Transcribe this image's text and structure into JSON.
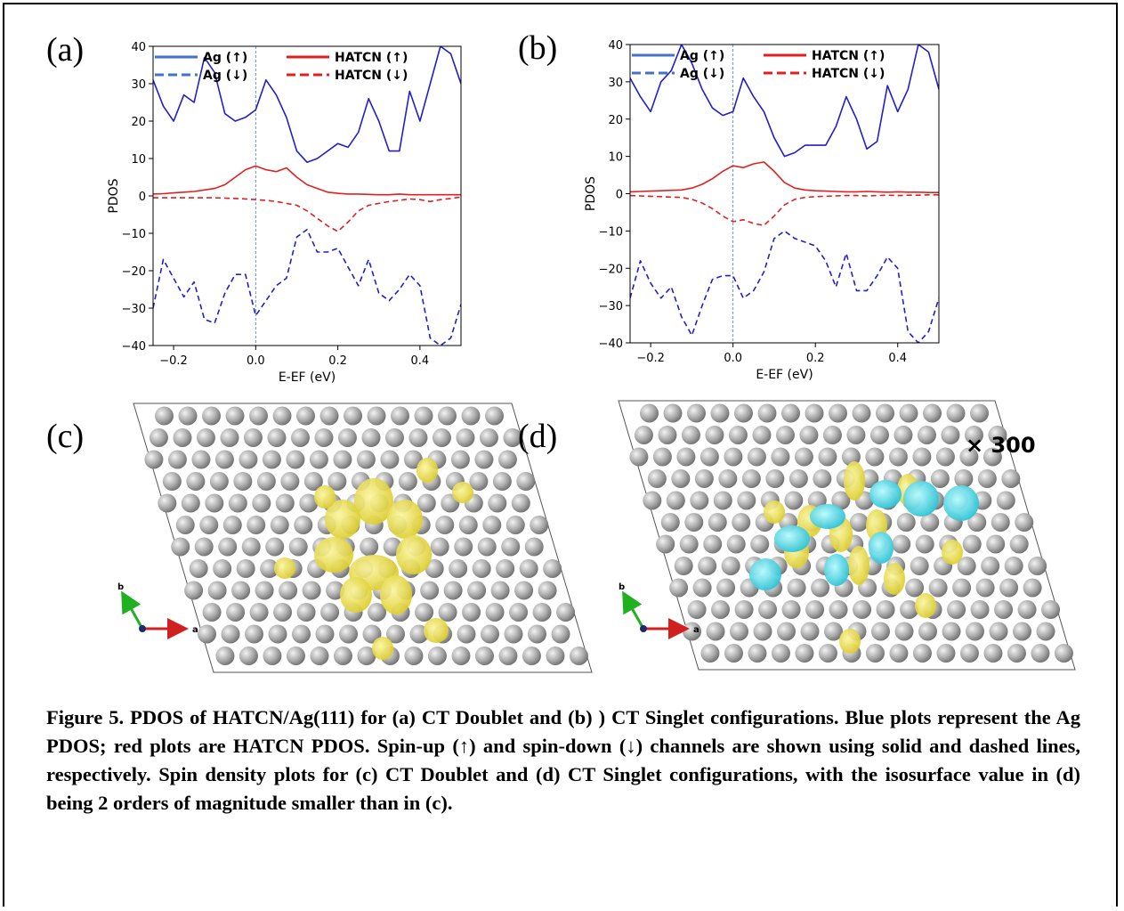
{
  "chart_data": [
    {
      "type": "line",
      "panel_label": "(a)",
      "ylabel": "PDOS",
      "xlabel": "E-EF (eV)",
      "x": [
        -0.25,
        -0.225,
        -0.2,
        -0.175,
        -0.15,
        -0.125,
        -0.1,
        -0.075,
        -0.05,
        -0.025,
        0,
        0.025,
        0.05,
        0.075,
        0.1,
        0.125,
        0.15,
        0.175,
        0.2,
        0.225,
        0.25,
        0.275,
        0.3,
        0.325,
        0.35,
        0.375,
        0.4,
        0.425,
        0.45,
        0.475,
        0.5
      ],
      "xlim": [
        -0.25,
        0.5
      ],
      "xticks": [
        {
          "value": -0.2,
          "label": "−0.2"
        },
        {
          "value": 0,
          "label": "0.0"
        },
        0.2,
        0.4
      ],
      "ylim": [
        -40,
        40
      ],
      "yticks": [
        {
          "value": -40,
          "label": "−40"
        },
        {
          "value": -30,
          "label": "−30"
        },
        {
          "value": -20,
          "label": "−20"
        },
        {
          "value": -10,
          "label": "−10"
        },
        0,
        10,
        20,
        30,
        40
      ],
      "vline": 0,
      "series": [
        {
          "name": "Ag (↑)",
          "color": "#1f1fcc",
          "legend_color": "#4472c4",
          "linestyle": "solid",
          "values": [
            31,
            24,
            20,
            27,
            25,
            37,
            33,
            22,
            20,
            21,
            23,
            31,
            27,
            21,
            12,
            9,
            10,
            12,
            14,
            13,
            17,
            26,
            20,
            12,
            12,
            28,
            20,
            30,
            40,
            38,
            30
          ]
        },
        {
          "name": "Ag (↓)",
          "color": "#1f1fcc",
          "legend_color": "#4472c4",
          "linestyle": "dashed",
          "values": [
            -30,
            -17,
            -22,
            -27,
            -23,
            -33,
            -34,
            -26,
            -21,
            -21,
            -32,
            -28,
            -24,
            -22,
            -11,
            -9,
            -15,
            -15,
            -14,
            -19,
            -24,
            -17,
            -26,
            -28,
            -25,
            -21,
            -24,
            -38,
            -40,
            -38,
            -29
          ]
        },
        {
          "name": "HATCN (↑)",
          "color": "#e02020",
          "legend_color": "#e02020",
          "linestyle": "solid",
          "values": [
            0.5,
            0.6,
            0.8,
            1,
            1.2,
            1.6,
            2,
            3,
            5,
            7,
            8,
            7,
            6.5,
            7.5,
            5,
            3,
            2,
            1,
            0.7,
            0.5,
            0.5,
            0.4,
            0.3,
            0.3,
            0.5,
            0.3,
            0.3,
            0.3,
            0.3,
            0.3,
            0.3
          ]
        },
        {
          "name": "HATCN (↓)",
          "color": "#e02020",
          "legend_color": "#e02020",
          "linestyle": "dashed",
          "values": [
            -0.5,
            -0.5,
            -0.5,
            -0.5,
            -0.5,
            -0.5,
            -0.5,
            -0.6,
            -0.7,
            -0.8,
            -1,
            -1.2,
            -1.5,
            -2,
            -2.5,
            -4,
            -6,
            -8,
            -9.5,
            -7,
            -4,
            -2.5,
            -2,
            -1.5,
            -1.2,
            -0.8,
            -1,
            -1.5,
            -1,
            -0.7,
            -0.3
          ]
        }
      ]
    },
    {
      "type": "line",
      "panel_label": "(b)",
      "ylabel": "PDOS",
      "xlabel": "E-EF (eV)",
      "x": [
        -0.25,
        -0.225,
        -0.2,
        -0.175,
        -0.15,
        -0.125,
        -0.1,
        -0.075,
        -0.05,
        -0.025,
        0,
        0.025,
        0.05,
        0.075,
        0.1,
        0.125,
        0.15,
        0.175,
        0.2,
        0.225,
        0.25,
        0.275,
        0.3,
        0.325,
        0.35,
        0.375,
        0.4,
        0.425,
        0.45,
        0.475,
        0.5
      ],
      "xlim": [
        -0.25,
        0.5
      ],
      "xticks": [
        {
          "value": -0.2,
          "label": "−0.2"
        },
        {
          "value": 0,
          "label": "0.0"
        },
        0.2,
        0.4
      ],
      "ylim": [
        -40,
        40
      ],
      "yticks": [
        {
          "value": -40,
          "label": "−40"
        },
        {
          "value": -30,
          "label": "−30"
        },
        {
          "value": -20,
          "label": "−20"
        },
        {
          "value": -10,
          "label": "−10"
        },
        0,
        10,
        20,
        30,
        40
      ],
      "vline": 0,
      "series": [
        {
          "name": "Ag (↑)",
          "color": "#1f1fcc",
          "legend_color": "#4472c4",
          "linestyle": "solid",
          "values": [
            31,
            26,
            22,
            30,
            33,
            40,
            35,
            28,
            23,
            21,
            22,
            31,
            26,
            22,
            15,
            10,
            11,
            13,
            13,
            13,
            18,
            26,
            20,
            12,
            14,
            29,
            22,
            28,
            40,
            38,
            28
          ]
        },
        {
          "name": "Ag (↓)",
          "color": "#1f1fcc",
          "legend_color": "#4472c4",
          "linestyle": "dashed",
          "values": [
            -28,
            -18,
            -24,
            -28,
            -25,
            -33,
            -38,
            -30,
            -23,
            -22,
            -22,
            -28,
            -26,
            -21,
            -12,
            -10,
            -12,
            -13,
            -14,
            -18,
            -25,
            -16,
            -26,
            -26,
            -22,
            -17,
            -20,
            -37,
            -40,
            -37,
            -28
          ]
        },
        {
          "name": "HATCN (↑)",
          "color": "#e02020",
          "legend_color": "#e02020",
          "linestyle": "solid",
          "values": [
            0.5,
            0.6,
            0.7,
            0.8,
            0.9,
            1,
            1.5,
            2.5,
            4,
            6,
            7.5,
            7,
            8,
            8.5,
            6,
            3,
            1.5,
            1,
            0.8,
            0.7,
            0.6,
            0.5,
            0.5,
            0.6,
            0.5,
            0.4,
            0.5,
            0.4,
            0.4,
            0.3,
            0.3
          ]
        },
        {
          "name": "HATCN (↓)",
          "color": "#e02020",
          "legend_color": "#e02020",
          "linestyle": "dashed",
          "values": [
            -0.5,
            -0.6,
            -0.7,
            -0.8,
            -0.9,
            -1,
            -1.5,
            -2.5,
            -4,
            -6,
            -7.5,
            -7,
            -8,
            -8.5,
            -6,
            -3,
            -1.5,
            -1,
            -0.8,
            -0.7,
            -0.6,
            -0.5,
            -0.5,
            -0.6,
            -0.5,
            -0.4,
            -0.5,
            -0.4,
            -0.4,
            -0.3,
            -0.3
          ]
        }
      ]
    }
  ],
  "panels": [
    {
      "label": "(c)",
      "axis_b": "b",
      "axis_a": "a"
    },
    {
      "label": "(d)",
      "axis_b": "b",
      "axis_a": "a",
      "scale_note": "× 300"
    }
  ],
  "caption": "Figure 5. PDOS of HATCN/Ag(111) for (a) CT Doublet and (b) ) CT Singlet configurations. Blue plots represent the Ag PDOS; red plots are HATCN PDOS. Spin-up (↑) and spin-down (↓) channels are shown using solid and dashed lines, respectively. Spin density plots for (c) CT Doublet and (d) CT Singlet configurations, with the isosurface value in (d) being 2 orders of magnitude smaller than in (c)."
}
